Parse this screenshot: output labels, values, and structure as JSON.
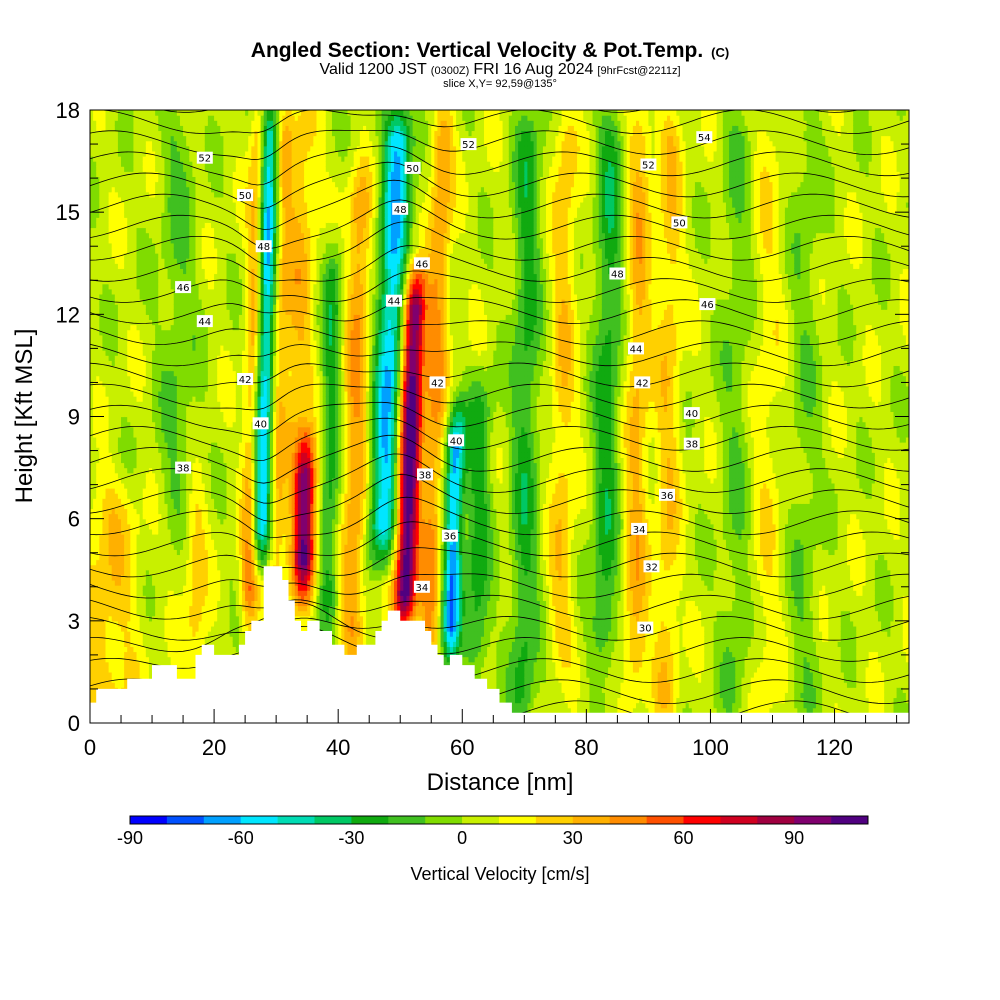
{
  "chart_data": {
    "type": "heatmap",
    "title": "Angled Section: Vertical Velocity & Pot.Temp.",
    "title_suffix": "(C)",
    "subtitle_parts": [
      "Valid 1200 JST",
      "(0300Z)",
      "FRI 16 Aug 2024",
      "[9hrFcst@2211z]"
    ],
    "subtitle2": "slice X,Y= 92,59@135°",
    "xlabel": "Distance [nm]",
    "ylabel": "Height [Kft MSL]",
    "xlim": [
      0,
      132
    ],
    "ylim": [
      0,
      18
    ],
    "x_ticks": [
      "0",
      "20",
      "40",
      "60",
      "80",
      "100",
      "120"
    ],
    "y_ticks": [
      "0",
      "3",
      "6",
      "9",
      "12",
      "15",
      "18"
    ],
    "colorbar": {
      "label": "Vertical Velocity [cm/s]",
      "range": [
        -90,
        110
      ],
      "step": 10,
      "tick_labels": [
        "-90",
        "-60",
        "-30",
        "0",
        "30",
        "60",
        "90"
      ],
      "colors": [
        "#0000ff",
        "#0050ff",
        "#00a0ff",
        "#00e6ff",
        "#00dcb4",
        "#00c864",
        "#10aa10",
        "#40c020",
        "#80dc00",
        "#c8f000",
        "#ffff00",
        "#ffd000",
        "#ffb000",
        "#ff8c00",
        "#ff5000",
        "#ff0000",
        "#d00020",
        "#a00040",
        "#80006e",
        "#500080"
      ]
    },
    "terrain_profile": {
      "x": [
        0,
        1,
        1,
        6,
        6,
        10,
        10,
        14,
        14,
        17,
        17,
        18,
        18,
        20,
        20,
        23,
        23,
        24,
        24,
        25,
        25,
        26,
        26,
        28,
        28,
        29,
        29,
        31,
        31,
        32,
        32,
        33,
        33,
        34,
        34,
        35,
        35,
        37,
        37,
        38,
        38,
        39,
        39,
        40,
        40,
        41,
        41,
        42,
        42,
        43,
        43,
        46,
        46,
        47,
        47,
        48,
        48,
        49,
        49,
        50,
        50,
        54,
        54,
        55,
        55,
        56,
        56,
        57,
        57,
        58,
        58,
        60,
        60,
        62,
        62,
        64,
        64,
        66,
        66,
        68,
        68,
        72,
        72,
        132
      ],
      "height": [
        0.6,
        0.6,
        1.0,
        1.0,
        1.3,
        1.3,
        1.7,
        1.7,
        1.3,
        1.3,
        2.0,
        2.0,
        2.3,
        2.3,
        2.0,
        2.0,
        2.0,
        2.0,
        2.3,
        2.3,
        2.7,
        2.7,
        3.0,
        3.0,
        4.6,
        4.6,
        4.6,
        4.6,
        4.2,
        4.2,
        3.6,
        3.6,
        3.0,
        3.0,
        2.7,
        2.7,
        3.0,
        3.0,
        2.7,
        2.7,
        2.7,
        2.7,
        2.3,
        2.3,
        2.3,
        2.3,
        2.0,
        2.0,
        2.0,
        2.0,
        2.3,
        2.3,
        2.7,
        2.7,
        3.0,
        3.0,
        3.3,
        3.3,
        3.3,
        3.3,
        3.0,
        3.0,
        2.7,
        2.7,
        2.3,
        2.3,
        2.0,
        2.0,
        1.7,
        1.7,
        2.0,
        2.0,
        1.7,
        1.7,
        1.3,
        1.3,
        1.0,
        1.0,
        0.6,
        0.6,
        0.3,
        0.3,
        0.3,
        0.3
      ]
    },
    "contour_labels": [
      {
        "text": "52",
        "x": 18.5,
        "y": 16.6
      },
      {
        "text": "50",
        "x": 25.0,
        "y": 15.5
      },
      {
        "text": "48",
        "x": 28.0,
        "y": 14.0
      },
      {
        "text": "46",
        "x": 15.0,
        "y": 12.8
      },
      {
        "text": "44",
        "x": 18.5,
        "y": 11.8
      },
      {
        "text": "42",
        "x": 25.0,
        "y": 10.1
      },
      {
        "text": "40",
        "x": 27.5,
        "y": 8.8
      },
      {
        "text": "38",
        "x": 15.0,
        "y": 7.5
      },
      {
        "text": "52",
        "x": 61.0,
        "y": 17.0
      },
      {
        "text": "50",
        "x": 52.0,
        "y": 16.3
      },
      {
        "text": "48",
        "x": 50.0,
        "y": 15.1
      },
      {
        "text": "46",
        "x": 53.5,
        "y": 13.5
      },
      {
        "text": "44",
        "x": 49.0,
        "y": 12.4
      },
      {
        "text": "42",
        "x": 56.0,
        "y": 10.0
      },
      {
        "text": "40",
        "x": 59.0,
        "y": 8.3
      },
      {
        "text": "38",
        "x": 54.0,
        "y": 7.3
      },
      {
        "text": "36",
        "x": 58.0,
        "y": 5.5
      },
      {
        "text": "34",
        "x": 53.5,
        "y": 4.0
      },
      {
        "text": "54",
        "x": 99.0,
        "y": 17.2
      },
      {
        "text": "52",
        "x": 90.0,
        "y": 16.4
      },
      {
        "text": "50",
        "x": 95.0,
        "y": 14.7
      },
      {
        "text": "48",
        "x": 85.0,
        "y": 13.2
      },
      {
        "text": "46",
        "x": 99.5,
        "y": 12.3
      },
      {
        "text": "44",
        "x": 88.0,
        "y": 11.0
      },
      {
        "text": "42",
        "x": 89.0,
        "y": 10.0
      },
      {
        "text": "40",
        "x": 97.0,
        "y": 9.1
      },
      {
        "text": "38",
        "x": 97.0,
        "y": 8.2
      },
      {
        "text": "36",
        "x": 93.0,
        "y": 6.7
      },
      {
        "text": "34",
        "x": 88.5,
        "y": 5.7
      },
      {
        "text": "32",
        "x": 90.5,
        "y": 4.6
      },
      {
        "text": "30",
        "x": 89.5,
        "y": 2.8
      }
    ]
  }
}
